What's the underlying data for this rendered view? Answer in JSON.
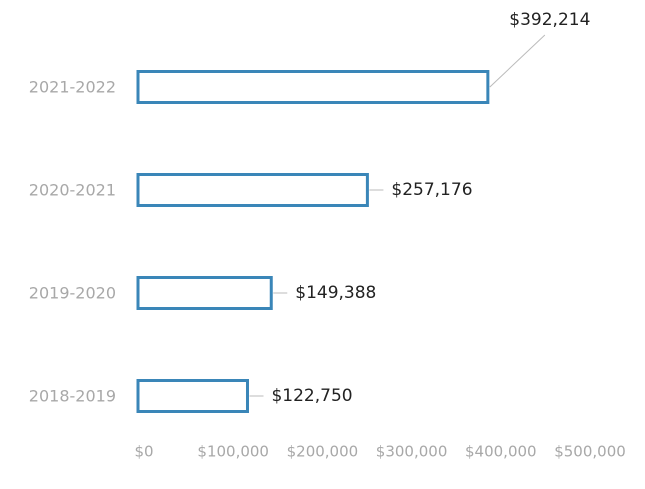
{
  "chart_data": {
    "type": "bar",
    "orientation": "horizontal",
    "categories": [
      "2021-2022",
      "2020-2021",
      "2019-2020",
      "2018-2019"
    ],
    "values": [
      392214,
      257176,
      149388,
      122750
    ],
    "value_labels": [
      "$392,214",
      "$257,176",
      "$149,388",
      "$122,750"
    ],
    "color": "#3a86b8",
    "xlim": [
      0,
      500000
    ],
    "xticks": [
      {
        "value": 0,
        "label": "$0"
      },
      {
        "value": 100000,
        "label": "$100,000"
      },
      {
        "value": 200000,
        "label": "$200,000"
      },
      {
        "value": 300000,
        "label": "$300,000"
      },
      {
        "value": 400000,
        "label": "$400,000"
      },
      {
        "value": 500000,
        "label": "$500,000"
      }
    ],
    "grid": false
  }
}
